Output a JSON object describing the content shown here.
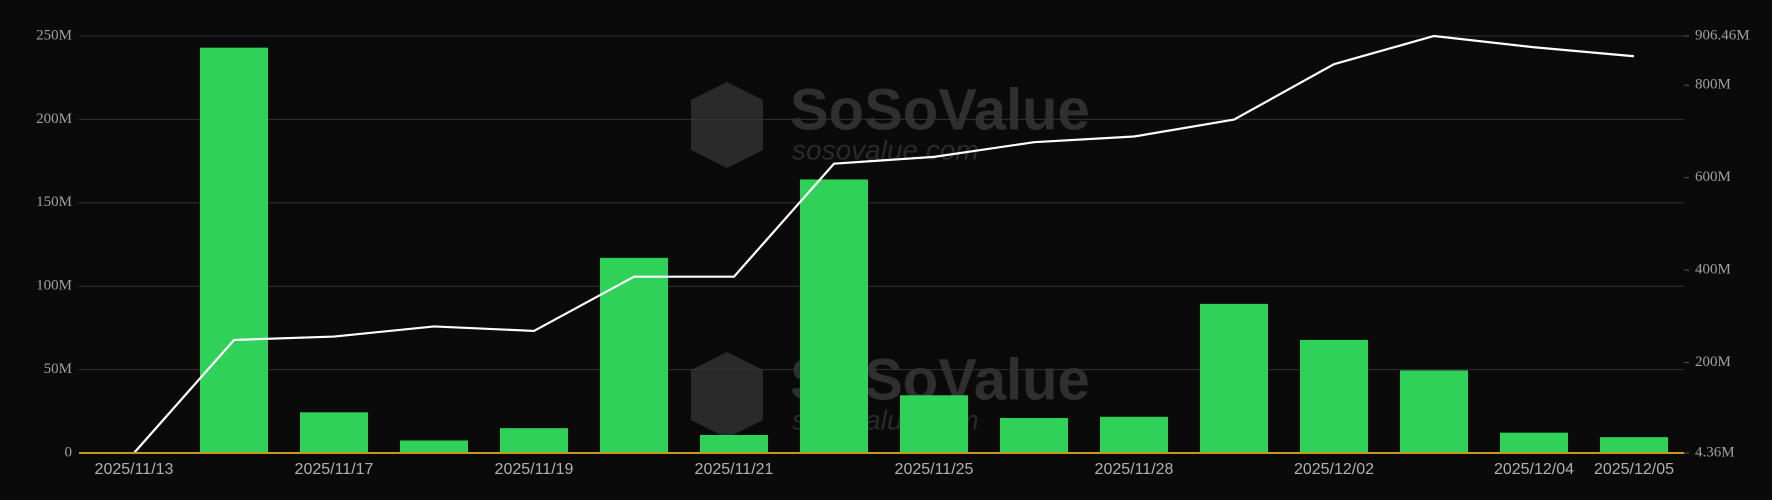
{
  "chart_data": {
    "type": "bar",
    "watermark": {
      "brand": "SoSoValue",
      "site": "sosovalue.com"
    },
    "categories": [
      "2025/11/13",
      null,
      "2025/11/17",
      null,
      "2025/11/19",
      null,
      "2025/11/21",
      null,
      "2025/11/25",
      null,
      "2025/11/28",
      null,
      "2025/12/02",
      null,
      "2025/12/04",
      "2025/12/05"
    ],
    "series": [
      {
        "type": "bar",
        "color": "#30d158",
        "values": [
          0,
          243,
          24.4,
          7.5,
          14.9,
          117,
          10.8,
          164,
          34.6,
          21,
          21.7,
          89.4,
          67.8,
          49.5,
          12.2,
          9.5
        ]
      },
      {
        "type": "line",
        "axis": "y2",
        "color": "#ffffff",
        "values": [
          4.36,
          248.9,
          256.2,
          278.2,
          268.4,
          385.8,
          385.8,
          630.3,
          645,
          676.7,
          689,
          725.6,
          845.5,
          906.46,
          882.1,
          862.6
        ]
      }
    ],
    "ylim": [
      0,
      250
    ],
    "yticks": [
      0,
      {
        "value": 50,
        "label": "50M"
      },
      {
        "value": 100,
        "label": "100M"
      },
      {
        "value": 150,
        "label": "150M"
      },
      {
        "value": 200,
        "label": "200M"
      },
      {
        "value": 250,
        "label": "250M"
      }
    ],
    "y2lim": [
      4.36,
      906.46
    ],
    "y2ticks": [
      {
        "value": 4.36,
        "label": "4.36M"
      },
      {
        "value": 200,
        "label": "200M"
      },
      {
        "value": 400,
        "label": "400M"
      },
      {
        "value": 600,
        "label": "600M"
      },
      {
        "value": 800,
        "label": "800M"
      },
      {
        "value": 906.46,
        "label": "906.46M"
      }
    ],
    "grid": true
  }
}
